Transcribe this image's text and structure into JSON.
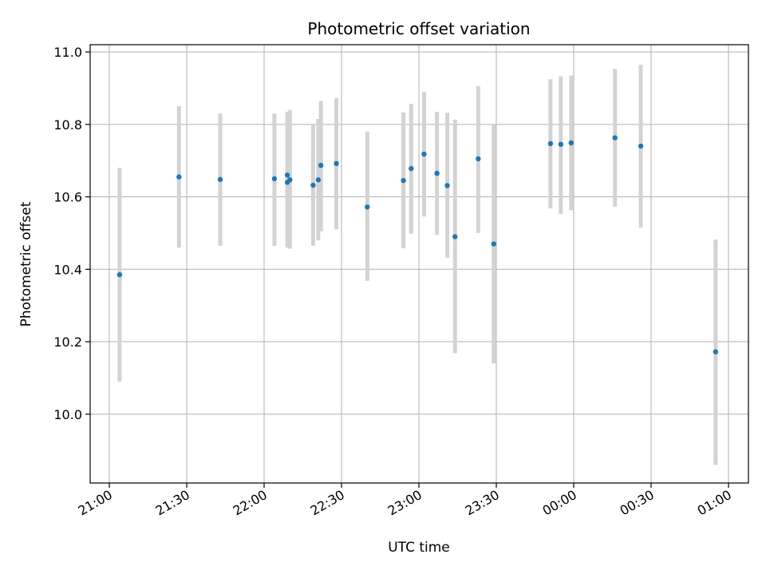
{
  "chart_data": {
    "type": "scatter",
    "title": "Photometric offset variation",
    "xlabel": "UTC time",
    "ylabel": "Photometric offset",
    "grid": true,
    "x_axis": "time",
    "xlim": [
      "21:00",
      "01:00"
    ],
    "ylim": [
      9.81,
      11.02
    ],
    "x_ticks": [
      "21:00",
      "21:30",
      "22:00",
      "22:30",
      "23:00",
      "23:30",
      "00:00",
      "00:30",
      "01:00"
    ],
    "y_ticks": [
      "10.0",
      "10.2",
      "10.4",
      "10.6",
      "10.8",
      "11.0"
    ],
    "marker_color": "#1f77b4",
    "errorbar_color": "#d3d3d3",
    "points": [
      {
        "x": "21:04",
        "y": 10.385,
        "low": 10.09,
        "high": 10.68
      },
      {
        "x": "21:27",
        "y": 10.655,
        "low": 10.46,
        "high": 10.85
      },
      {
        "x": "21:43",
        "y": 10.648,
        "low": 10.465,
        "high": 10.83
      },
      {
        "x": "22:04",
        "y": 10.65,
        "low": 10.465,
        "high": 10.83
      },
      {
        "x": "22:09",
        "y": 10.66,
        "low": 10.485,
        "high": 10.835
      },
      {
        "x": "22:09",
        "y": 10.64,
        "low": 10.46,
        "high": 10.83
      },
      {
        "x": "22:10",
        "y": 10.647,
        "low": 10.457,
        "high": 10.84
      },
      {
        "x": "22:19",
        "y": 10.632,
        "low": 10.465,
        "high": 10.8
      },
      {
        "x": "22:21",
        "y": 10.647,
        "low": 10.48,
        "high": 10.815
      },
      {
        "x": "22:22",
        "y": 10.687,
        "low": 10.505,
        "high": 10.865
      },
      {
        "x": "22:28",
        "y": 10.692,
        "low": 10.51,
        "high": 10.872
      },
      {
        "x": "22:40",
        "y": 10.572,
        "low": 10.368,
        "high": 10.78
      },
      {
        "x": "22:54",
        "y": 10.645,
        "low": 10.458,
        "high": 10.833
      },
      {
        "x": "22:57",
        "y": 10.678,
        "low": 10.498,
        "high": 10.857
      },
      {
        "x": "23:02",
        "y": 10.718,
        "low": 10.546,
        "high": 10.89
      },
      {
        "x": "23:07",
        "y": 10.665,
        "low": 10.495,
        "high": 10.835
      },
      {
        "x": "23:11",
        "y": 10.631,
        "low": 10.432,
        "high": 10.832
      },
      {
        "x": "23:14",
        "y": 10.49,
        "low": 10.168,
        "high": 10.813
      },
      {
        "x": "23:23",
        "y": 10.705,
        "low": 10.5,
        "high": 10.906
      },
      {
        "x": "23:29",
        "y": 10.47,
        "low": 10.14,
        "high": 10.8
      },
      {
        "x": "23:51",
        "y": 10.747,
        "low": 10.568,
        "high": 10.925
      },
      {
        "x": "23:55",
        "y": 10.745,
        "low": 10.553,
        "high": 10.933
      },
      {
        "x": "23:59",
        "y": 10.749,
        "low": 10.563,
        "high": 10.935
      },
      {
        "x": "00:16",
        "y": 10.763,
        "low": 10.573,
        "high": 10.953
      },
      {
        "x": "00:26",
        "y": 10.74,
        "low": 10.515,
        "high": 10.965
      },
      {
        "x": "00:55",
        "y": 10.172,
        "low": 9.86,
        "high": 10.482
      }
    ]
  }
}
